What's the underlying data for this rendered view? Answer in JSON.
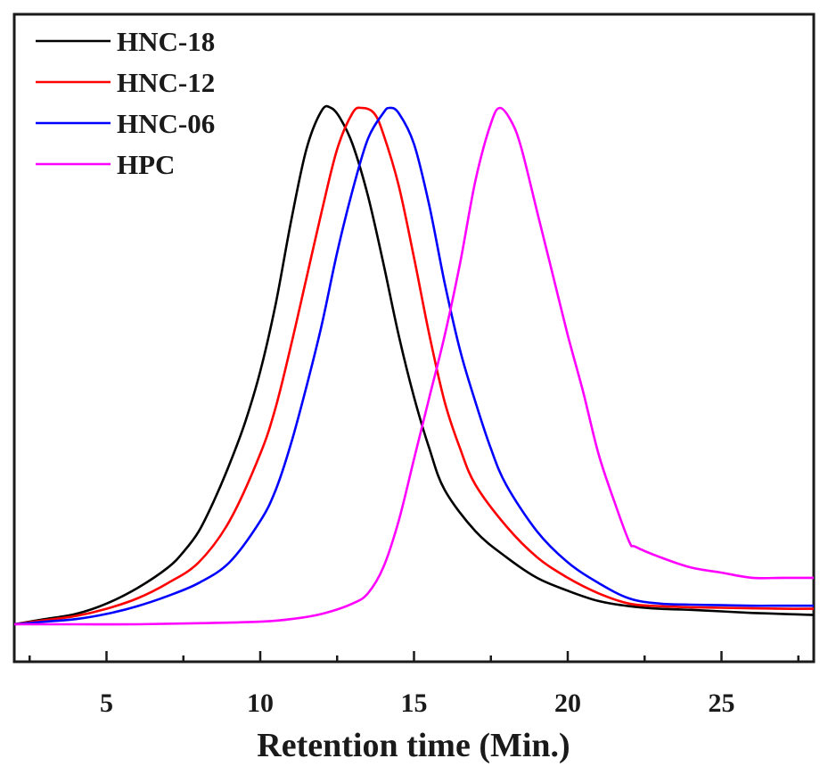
{
  "chart_data": {
    "type": "line",
    "title": "",
    "xlabel": "Retention time (Min.)",
    "ylabel": "",
    "xlim": [
      2,
      28
    ],
    "ylim": [
      -0.07,
      1.0
    ],
    "xticks": [
      5,
      10,
      15,
      20,
      25
    ],
    "x_minor_step": 2.5,
    "y_ticks_shown": false,
    "legend_position": "top-left",
    "series": [
      {
        "name": "HNC-18",
        "color": "#000000",
        "points": [
          [
            2,
            0.0
          ],
          [
            3,
            0.01
          ],
          [
            4,
            0.02
          ],
          [
            5,
            0.04
          ],
          [
            6,
            0.07
          ],
          [
            7,
            0.11
          ],
          [
            7.5,
            0.14
          ],
          [
            8,
            0.18
          ],
          [
            8.5,
            0.24
          ],
          [
            9,
            0.31
          ],
          [
            9.5,
            0.39
          ],
          [
            10,
            0.49
          ],
          [
            10.5,
            0.62
          ],
          [
            11,
            0.78
          ],
          [
            11.5,
            0.92
          ],
          [
            12,
            0.995
          ],
          [
            12.3,
            1.0
          ],
          [
            12.6,
            0.98
          ],
          [
            13,
            0.93
          ],
          [
            13.5,
            0.83
          ],
          [
            14,
            0.7
          ],
          [
            14.5,
            0.56
          ],
          [
            15,
            0.44
          ],
          [
            15.5,
            0.34
          ],
          [
            16,
            0.26
          ],
          [
            17,
            0.18
          ],
          [
            18,
            0.13
          ],
          [
            19,
            0.09
          ],
          [
            20,
            0.065
          ],
          [
            21,
            0.045
          ],
          [
            22,
            0.035
          ],
          [
            23,
            0.03
          ],
          [
            24,
            0.028
          ],
          [
            25,
            0.025
          ],
          [
            26,
            0.022
          ],
          [
            27,
            0.02
          ],
          [
            28,
            0.018
          ]
        ]
      },
      {
        "name": "HNC-12",
        "color": "#ff0000",
        "points": [
          [
            2,
            0.0
          ],
          [
            3,
            0.008
          ],
          [
            4,
            0.016
          ],
          [
            5,
            0.03
          ],
          [
            6,
            0.05
          ],
          [
            7,
            0.08
          ],
          [
            8,
            0.12
          ],
          [
            9,
            0.2
          ],
          [
            10,
            0.33
          ],
          [
            10.5,
            0.42
          ],
          [
            11,
            0.54
          ],
          [
            11.5,
            0.67
          ],
          [
            12,
            0.8
          ],
          [
            12.5,
            0.92
          ],
          [
            13,
            0.99
          ],
          [
            13.3,
            1.0
          ],
          [
            13.7,
            0.99
          ],
          [
            14,
            0.95
          ],
          [
            14.5,
            0.85
          ],
          [
            15,
            0.71
          ],
          [
            15.5,
            0.56
          ],
          [
            16,
            0.43
          ],
          [
            16.5,
            0.34
          ],
          [
            17,
            0.27
          ],
          [
            18,
            0.19
          ],
          [
            19,
            0.13
          ],
          [
            20,
            0.09
          ],
          [
            21,
            0.06
          ],
          [
            22,
            0.04
          ],
          [
            23,
            0.035
          ],
          [
            24,
            0.033
          ],
          [
            25,
            0.032
          ],
          [
            26,
            0.031
          ],
          [
            27,
            0.03
          ],
          [
            28,
            0.03
          ]
        ]
      },
      {
        "name": "HNC-06",
        "color": "#0000ff",
        "points": [
          [
            2,
            0.0
          ],
          [
            3,
            0.005
          ],
          [
            4,
            0.01
          ],
          [
            5,
            0.02
          ],
          [
            6,
            0.035
          ],
          [
            7,
            0.055
          ],
          [
            8,
            0.08
          ],
          [
            9,
            0.12
          ],
          [
            10,
            0.2
          ],
          [
            10.5,
            0.26
          ],
          [
            11,
            0.35
          ],
          [
            11.5,
            0.46
          ],
          [
            12,
            0.58
          ],
          [
            12.5,
            0.72
          ],
          [
            13,
            0.84
          ],
          [
            13.5,
            0.94
          ],
          [
            14,
            0.99
          ],
          [
            14.2,
            1.0
          ],
          [
            14.5,
            0.99
          ],
          [
            15,
            0.93
          ],
          [
            15.5,
            0.81
          ],
          [
            16,
            0.66
          ],
          [
            16.5,
            0.53
          ],
          [
            17,
            0.43
          ],
          [
            17.5,
            0.34
          ],
          [
            18,
            0.27
          ],
          [
            19,
            0.18
          ],
          [
            20,
            0.12
          ],
          [
            21,
            0.08
          ],
          [
            22,
            0.05
          ],
          [
            23,
            0.04
          ],
          [
            24,
            0.038
          ],
          [
            25,
            0.037
          ],
          [
            26,
            0.036
          ],
          [
            27,
            0.036
          ],
          [
            28,
            0.036
          ]
        ]
      },
      {
        "name": "HPC",
        "color": "#ff00ff",
        "points": [
          [
            2,
            0.0
          ],
          [
            4,
            0.0
          ],
          [
            6,
            0.0
          ],
          [
            8,
            0.002
          ],
          [
            10,
            0.005
          ],
          [
            11,
            0.01
          ],
          [
            12,
            0.02
          ],
          [
            13,
            0.04
          ],
          [
            13.5,
            0.06
          ],
          [
            14,
            0.11
          ],
          [
            14.5,
            0.2
          ],
          [
            15,
            0.32
          ],
          [
            15.5,
            0.44
          ],
          [
            16,
            0.56
          ],
          [
            16.5,
            0.7
          ],
          [
            17,
            0.86
          ],
          [
            17.5,
            0.97
          ],
          [
            17.8,
            1.0
          ],
          [
            18.2,
            0.97
          ],
          [
            18.5,
            0.92
          ],
          [
            19,
            0.8
          ],
          [
            19.5,
            0.68
          ],
          [
            20,
            0.56
          ],
          [
            20.5,
            0.45
          ],
          [
            21,
            0.33
          ],
          [
            21.5,
            0.24
          ],
          [
            22,
            0.16
          ],
          [
            22.2,
            0.15
          ],
          [
            23,
            0.13
          ],
          [
            24,
            0.11
          ],
          [
            25,
            0.1
          ],
          [
            26,
            0.09
          ],
          [
            27,
            0.09
          ],
          [
            28,
            0.09
          ]
        ]
      }
    ]
  }
}
